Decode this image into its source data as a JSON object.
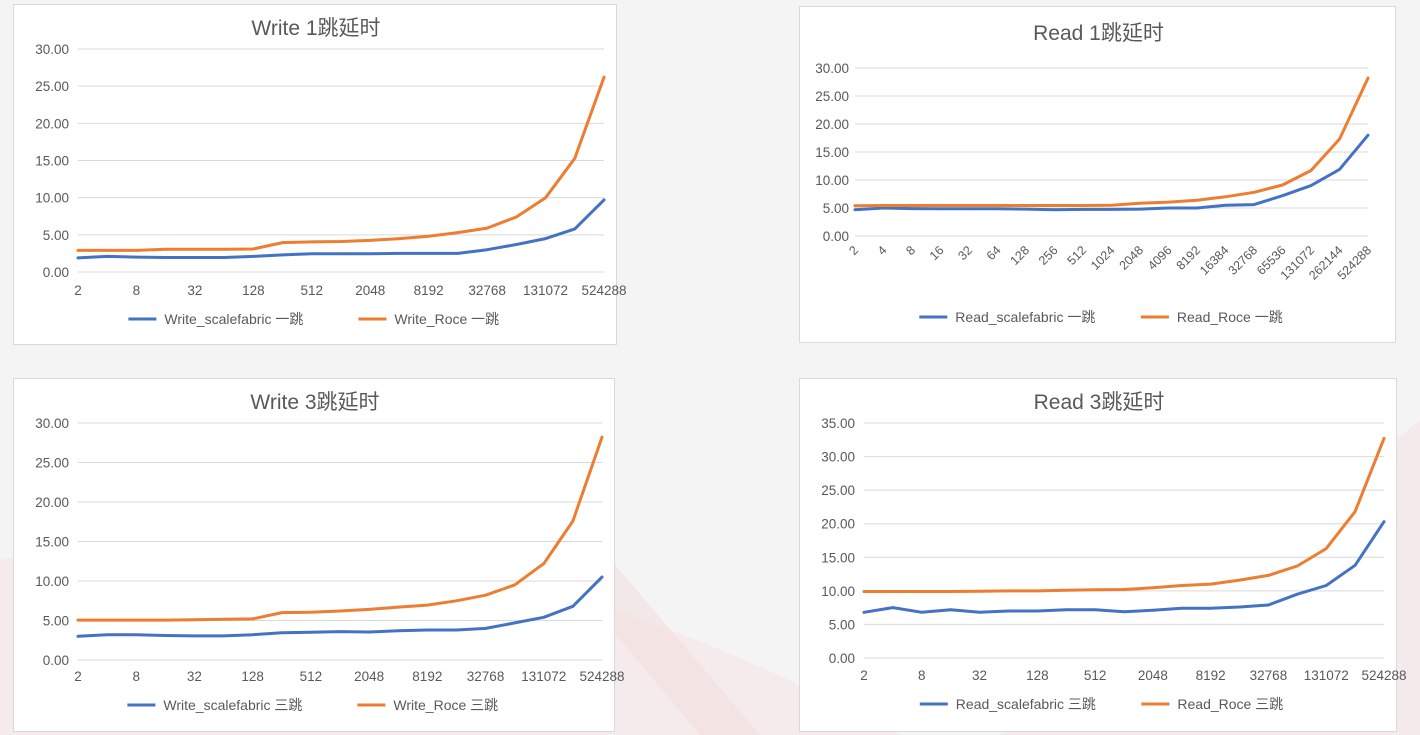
{
  "colors": {
    "series1": "#4472c4",
    "series2": "#ed7d31",
    "grid": "#d9d9d9",
    "text": "#595959"
  },
  "chart_data": [
    {
      "type": "line",
      "title": "Write 1跳延时",
      "x": [
        "2",
        "4",
        "8",
        "16",
        "32",
        "64",
        "128",
        "256",
        "512",
        "1024",
        "2048",
        "4096",
        "8192",
        "16384",
        "32768",
        "65536",
        "131072",
        "262144",
        "524288"
      ],
      "x_tick_labels": [
        "2",
        "8",
        "32",
        "128",
        "512",
        "2048",
        "8192",
        "32768",
        "131072",
        "524288"
      ],
      "y_tick_labels": [
        "0.00",
        "5.00",
        "10.00",
        "15.00",
        "20.00",
        "25.00",
        "30.00"
      ],
      "ylim": [
        0,
        30
      ],
      "legend_position": "bottom",
      "grid": true,
      "series": [
        {
          "name": "Write_scalefabric 一跳",
          "values": [
            1.9,
            2.1,
            2.0,
            1.95,
            1.95,
            1.95,
            2.1,
            2.3,
            2.45,
            2.45,
            2.45,
            2.5,
            2.5,
            2.5,
            3.0,
            3.7,
            4.5,
            5.8,
            9.7
          ]
        },
        {
          "name": "Write_Roce 一跳",
          "values": [
            2.9,
            2.9,
            2.9,
            3.05,
            3.05,
            3.05,
            3.1,
            3.95,
            4.05,
            4.1,
            4.25,
            4.5,
            4.8,
            5.3,
            5.9,
            7.4,
            10.0,
            15.3,
            26.2
          ]
        }
      ]
    },
    {
      "type": "line",
      "title": "Read 1跳延时",
      "x": [
        "2",
        "4",
        "8",
        "16",
        "32",
        "64",
        "128",
        "256",
        "512",
        "1024",
        "2048",
        "4096",
        "8192",
        "16384",
        "32768",
        "65536",
        "131072",
        "262144",
        "524288"
      ],
      "x_tick_labels": [
        "2",
        "4",
        "8",
        "16",
        "32",
        "64",
        "128",
        "256",
        "512",
        "1024",
        "2048",
        "4096",
        "8192",
        "16384",
        "32768",
        "65536",
        "131072",
        "262144",
        "524288"
      ],
      "y_tick_labels": [
        "0.00",
        "5.00",
        "10.00",
        "15.00",
        "20.00",
        "25.00",
        "30.00"
      ],
      "ylim": [
        0,
        30
      ],
      "legend_position": "bottom",
      "grid": true,
      "series": [
        {
          "name": "Read_scalefabric 一跳",
          "values": [
            4.7,
            5.0,
            4.9,
            4.85,
            4.85,
            4.85,
            4.8,
            4.7,
            4.75,
            4.75,
            4.8,
            5.0,
            5.0,
            5.5,
            5.6,
            7.2,
            9.0,
            11.9,
            18.0
          ]
        },
        {
          "name": "Read_Roce 一跳",
          "values": [
            5.4,
            5.45,
            5.45,
            5.45,
            5.45,
            5.45,
            5.45,
            5.45,
            5.45,
            5.5,
            5.85,
            6.05,
            6.4,
            7.0,
            7.8,
            9.1,
            11.7,
            17.3,
            28.2
          ]
        }
      ]
    },
    {
      "type": "line",
      "title": "Write 3跳延时",
      "x": [
        "2",
        "4",
        "8",
        "16",
        "32",
        "64",
        "128",
        "256",
        "512",
        "1024",
        "2048",
        "4096",
        "8192",
        "16384",
        "32768",
        "65536",
        "131072",
        "262144",
        "524288"
      ],
      "x_tick_labels": [
        "2",
        "8",
        "32",
        "128",
        "512",
        "2048",
        "8192",
        "32768",
        "131072",
        "524288"
      ],
      "y_tick_labels": [
        "0.00",
        "5.00",
        "10.00",
        "15.00",
        "20.00",
        "25.00",
        "30.00"
      ],
      "ylim": [
        0,
        30
      ],
      "legend_position": "bottom",
      "grid": true,
      "series": [
        {
          "name": "Write_scalefabric 三跳",
          "values": [
            3.0,
            3.2,
            3.2,
            3.1,
            3.05,
            3.05,
            3.2,
            3.45,
            3.5,
            3.6,
            3.55,
            3.7,
            3.8,
            3.8,
            4.0,
            4.7,
            5.4,
            6.8,
            10.5
          ]
        },
        {
          "name": "Write_Roce 三跳",
          "values": [
            5.05,
            5.05,
            5.05,
            5.05,
            5.1,
            5.15,
            5.2,
            6.0,
            6.05,
            6.2,
            6.4,
            6.7,
            6.95,
            7.5,
            8.2,
            9.5,
            12.2,
            17.6,
            28.2
          ]
        }
      ]
    },
    {
      "type": "line",
      "title": "Read 3跳延时",
      "x": [
        "2",
        "4",
        "8",
        "16",
        "32",
        "64",
        "128",
        "256",
        "512",
        "1024",
        "2048",
        "4096",
        "8192",
        "16384",
        "32768",
        "65536",
        "131072",
        "262144",
        "524288"
      ],
      "x_tick_labels": [
        "2",
        "8",
        "32",
        "128",
        "512",
        "2048",
        "8192",
        "32768",
        "131072",
        "524288"
      ],
      "y_tick_labels": [
        "0.00",
        "5.00",
        "10.00",
        "15.00",
        "20.00",
        "25.00",
        "30.00",
        "35.00"
      ],
      "ylim": [
        0,
        35
      ],
      "legend_position": "bottom",
      "grid": true,
      "series": [
        {
          "name": "Read_scalefabric 三跳",
          "values": [
            6.8,
            7.5,
            6.8,
            7.2,
            6.8,
            7.0,
            7.0,
            7.2,
            7.2,
            6.9,
            7.1,
            7.4,
            7.4,
            7.6,
            7.9,
            9.5,
            10.8,
            13.8,
            20.3
          ]
        },
        {
          "name": "Read_Roce 三跳",
          "values": [
            9.9,
            9.9,
            9.9,
            9.9,
            9.95,
            10.0,
            10.0,
            10.1,
            10.15,
            10.2,
            10.45,
            10.8,
            11.0,
            11.6,
            12.3,
            13.7,
            16.3,
            21.8,
            32.7
          ]
        }
      ]
    }
  ]
}
